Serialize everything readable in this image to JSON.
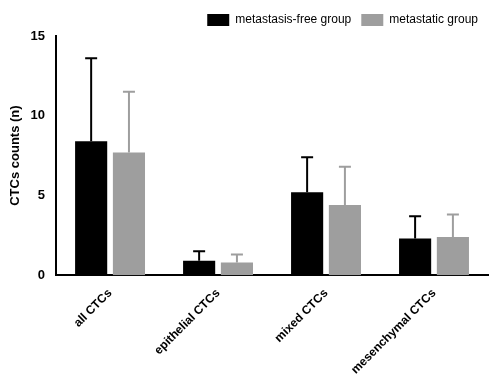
{
  "chart_data": {
    "type": "bar",
    "categories": [
      "all CTCs",
      "epithelial CTCs",
      "mixed CTCs",
      "mesenchymal CTCs"
    ],
    "series": [
      {
        "name": "metastasis-free group",
        "color": "#000000",
        "values": [
          8.4,
          0.9,
          5.2,
          2.3
        ],
        "errors": [
          5.2,
          0.6,
          2.2,
          1.4
        ]
      },
      {
        "name": "metastatic group",
        "color": "#9e9e9e",
        "values": [
          7.7,
          0.8,
          4.4,
          2.4
        ],
        "errors": [
          3.8,
          0.5,
          2.4,
          1.4
        ]
      }
    ],
    "y_label": "CTCs counts (n)",
    "ylim": [
      0,
      15
    ],
    "yticks": [
      0,
      5,
      10,
      15
    ],
    "grid": false,
    "legend": "upper right"
  }
}
